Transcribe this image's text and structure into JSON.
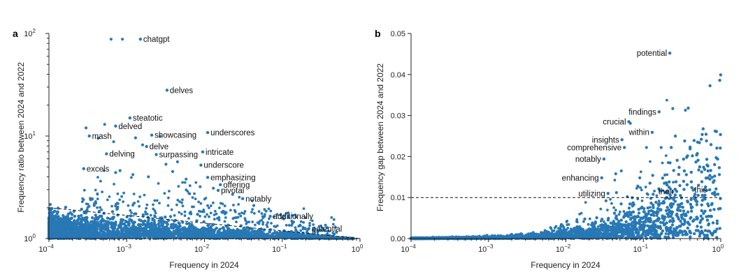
{
  "chart_data": [
    {
      "panel": "a",
      "type": "scatter",
      "xscale": "log",
      "yscale": "log",
      "xlim": [
        0.0001,
        1
      ],
      "ylim": [
        1,
        100
      ],
      "xlabel": "Frequency in 2024",
      "ylabel": "Frequency ratio between 2024 and 2022",
      "x_ticks": [
        {
          "value": 0.0001,
          "base": "10",
          "exp": "−4"
        },
        {
          "value": 0.001,
          "base": "10",
          "exp": "−3"
        },
        {
          "value": 0.01,
          "base": "10",
          "exp": "−2"
        },
        {
          "value": 0.1,
          "base": "10",
          "exp": "−1"
        },
        {
          "value": 1,
          "base": "10",
          "exp": "0"
        }
      ],
      "y_ticks": [
        {
          "value": 1,
          "base": "10",
          "exp": "0"
        },
        {
          "value": 10,
          "base": "10",
          "exp": "1"
        },
        {
          "value": 100,
          "base": "10",
          "exp": "2"
        }
      ],
      "reference_line": {
        "style": "dashed",
        "points": [
          [
            0.0001,
            2.0
          ],
          [
            1,
            1.0
          ]
        ]
      },
      "color": "#2878b5",
      "labeled_points": [
        {
          "word": "chatgpt",
          "x": 0.0015,
          "y": 88
        },
        {
          "word": "delves",
          "x": 0.0033,
          "y": 28
        },
        {
          "word": "steatotic",
          "x": 0.0011,
          "y": 15
        },
        {
          "word": "delved",
          "x": 0.00072,
          "y": 12.5
        },
        {
          "word": "mash",
          "x": 0.00033,
          "y": 10
        },
        {
          "word": "showcasing",
          "x": 0.0021,
          "y": 10.2
        },
        {
          "word": "underscores",
          "x": 0.011,
          "y": 10.8
        },
        {
          "word": "delve",
          "x": 0.0018,
          "y": 7.9
        },
        {
          "word": "delving",
          "x": 0.00055,
          "y": 6.7
        },
        {
          "word": "surpassing",
          "x": 0.0024,
          "y": 6.6
        },
        {
          "word": "intricate",
          "x": 0.0095,
          "y": 7.0
        },
        {
          "word": "underscore",
          "x": 0.009,
          "y": 5.2
        },
        {
          "word": "excels",
          "x": 0.00028,
          "y": 4.8
        },
        {
          "word": "emphasizing",
          "x": 0.011,
          "y": 3.95
        },
        {
          "word": "offering",
          "x": 0.016,
          "y": 3.35
        },
        {
          "word": "pivotal",
          "x": 0.015,
          "y": 2.95
        },
        {
          "word": "notably",
          "x": 0.031,
          "y": 2.45
        },
        {
          "word": "additionally",
          "x": 0.07,
          "y": 1.65
        },
        {
          "word": "potential",
          "x": 0.22,
          "y": 1.25
        }
      ],
      "unlabeled_points": [
        [
          0.00063,
          88
        ],
        [
          0.00088,
          88
        ],
        [
          0.0003,
          12
        ],
        [
          0.00043,
          9.5
        ],
        [
          0.00052,
          13
        ],
        [
          0.00068,
          8.8
        ],
        [
          0.0013,
          9.6
        ],
        [
          0.0016,
          8.2
        ],
        [
          0.0027,
          9.9
        ],
        [
          0.0045,
          5.6
        ],
        [
          0.0032,
          5.3
        ],
        [
          0.00082,
          4.6
        ],
        [
          0.00072,
          4.4
        ],
        [
          0.0012,
          4.2
        ],
        [
          0.0019,
          4.0
        ],
        [
          0.0039,
          4.5
        ],
        [
          0.0058,
          3.8
        ],
        [
          0.0088,
          3.2
        ],
        [
          0.013,
          3.1
        ],
        [
          0.023,
          2.7
        ],
        [
          0.043,
          2.1
        ],
        [
          0.062,
          1.85
        ],
        [
          0.095,
          1.7
        ],
        [
          0.14,
          1.45
        ],
        [
          0.36,
          1.35
        ]
      ]
    },
    {
      "panel": "b",
      "type": "scatter",
      "xscale": "log",
      "yscale": "linear",
      "xlim": [
        0.0001,
        1
      ],
      "ylim": [
        0,
        0.05
      ],
      "xlabel": "Frequency in 2024",
      "ylabel": "Frequency gap between 2024 and 2022",
      "x_ticks": [
        {
          "value": 0.0001,
          "base": "10",
          "exp": "−4"
        },
        {
          "value": 0.001,
          "base": "10",
          "exp": "−3"
        },
        {
          "value": 0.01,
          "base": "10",
          "exp": "−2"
        },
        {
          "value": 0.1,
          "base": "10",
          "exp": "−1"
        },
        {
          "value": 1,
          "base": "10",
          "exp": "0"
        }
      ],
      "y_ticks": [
        "0.00",
        "0.01",
        "0.02",
        "0.03",
        "0.04",
        "0.05"
      ],
      "reference_line": {
        "style": "dashed",
        "y": 0.01
      },
      "color": "#2878b5",
      "labeled_points": [
        {
          "word": "potential",
          "x": 0.22,
          "y": 0.0452
        },
        {
          "word": "findings",
          "x": 0.16,
          "y": 0.0309
        },
        {
          "word": "crucial",
          "x": 0.065,
          "y": 0.0285
        },
        {
          "word": "within",
          "x": 0.13,
          "y": 0.0259
        },
        {
          "word": "insights",
          "x": 0.053,
          "y": 0.0241
        },
        {
          "word": "comprehensive",
          "x": 0.057,
          "y": 0.0222
        },
        {
          "word": "notably",
          "x": 0.031,
          "y": 0.0194
        },
        {
          "word": "enhancing",
          "x": 0.029,
          "y": 0.0148
        },
        {
          "word": "utilizing",
          "x": 0.035,
          "y": 0.011
        },
        {
          "word": "their",
          "x": 0.27,
          "y": 0.0115
        },
        {
          "word": "this",
          "x": 0.72,
          "y": 0.0119
        }
      ],
      "unlabeled_points": [
        [
          0.24,
          0.0317
        ],
        [
          0.35,
          0.0313
        ],
        [
          0.068,
          0.0281
        ],
        [
          0.17,
          0.0222
        ],
        [
          0.11,
          0.0222
        ],
        [
          0.21,
          0.0185
        ],
        [
          0.052,
          0.0165
        ],
        [
          0.044,
          0.0158
        ],
        [
          0.09,
          0.0148
        ],
        [
          0.19,
          0.0155
        ],
        [
          0.085,
          0.0128
        ],
        [
          0.125,
          0.0098
        ],
        [
          0.28,
          0.0082
        ],
        [
          0.033,
          0.0092
        ],
        [
          0.062,
          0.0102
        ],
        [
          0.9,
          0.0043
        ],
        [
          0.6,
          0.0062
        ],
        [
          0.34,
          0.0036
        ],
        [
          0.15,
          0.0066
        ],
        [
          0.045,
          0.0112
        ]
      ]
    }
  ]
}
